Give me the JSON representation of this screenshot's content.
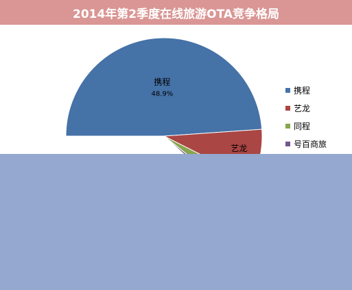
{
  "title": "2014年第2季度在线旅游OTA竞争格局",
  "colors": {
    "title_bar": "#d99694",
    "overlay": "#94a8d0"
  },
  "chart_data": {
    "type": "pie",
    "title": "2014年第2季度在线旅游OTA竞争格局",
    "legend_position": "right",
    "slices": [
      {
        "name": "携程",
        "value": 48.9,
        "label": "48.9%",
        "color": "#4572a7"
      },
      {
        "name": "艺龙",
        "value": 8.5,
        "color": "#aa4643"
      },
      {
        "name": "同程",
        "value": 3.3,
        "color": "#89a54e"
      },
      {
        "name": "号百商旅",
        "value": 1.0,
        "color": "#71588f"
      }
    ],
    "legend": [
      "携程",
      "艺龙",
      "同程",
      "号百商旅"
    ],
    "visible_slice_labels": {
      "携程": "携程",
      "艺龙": "艺龙"
    }
  }
}
